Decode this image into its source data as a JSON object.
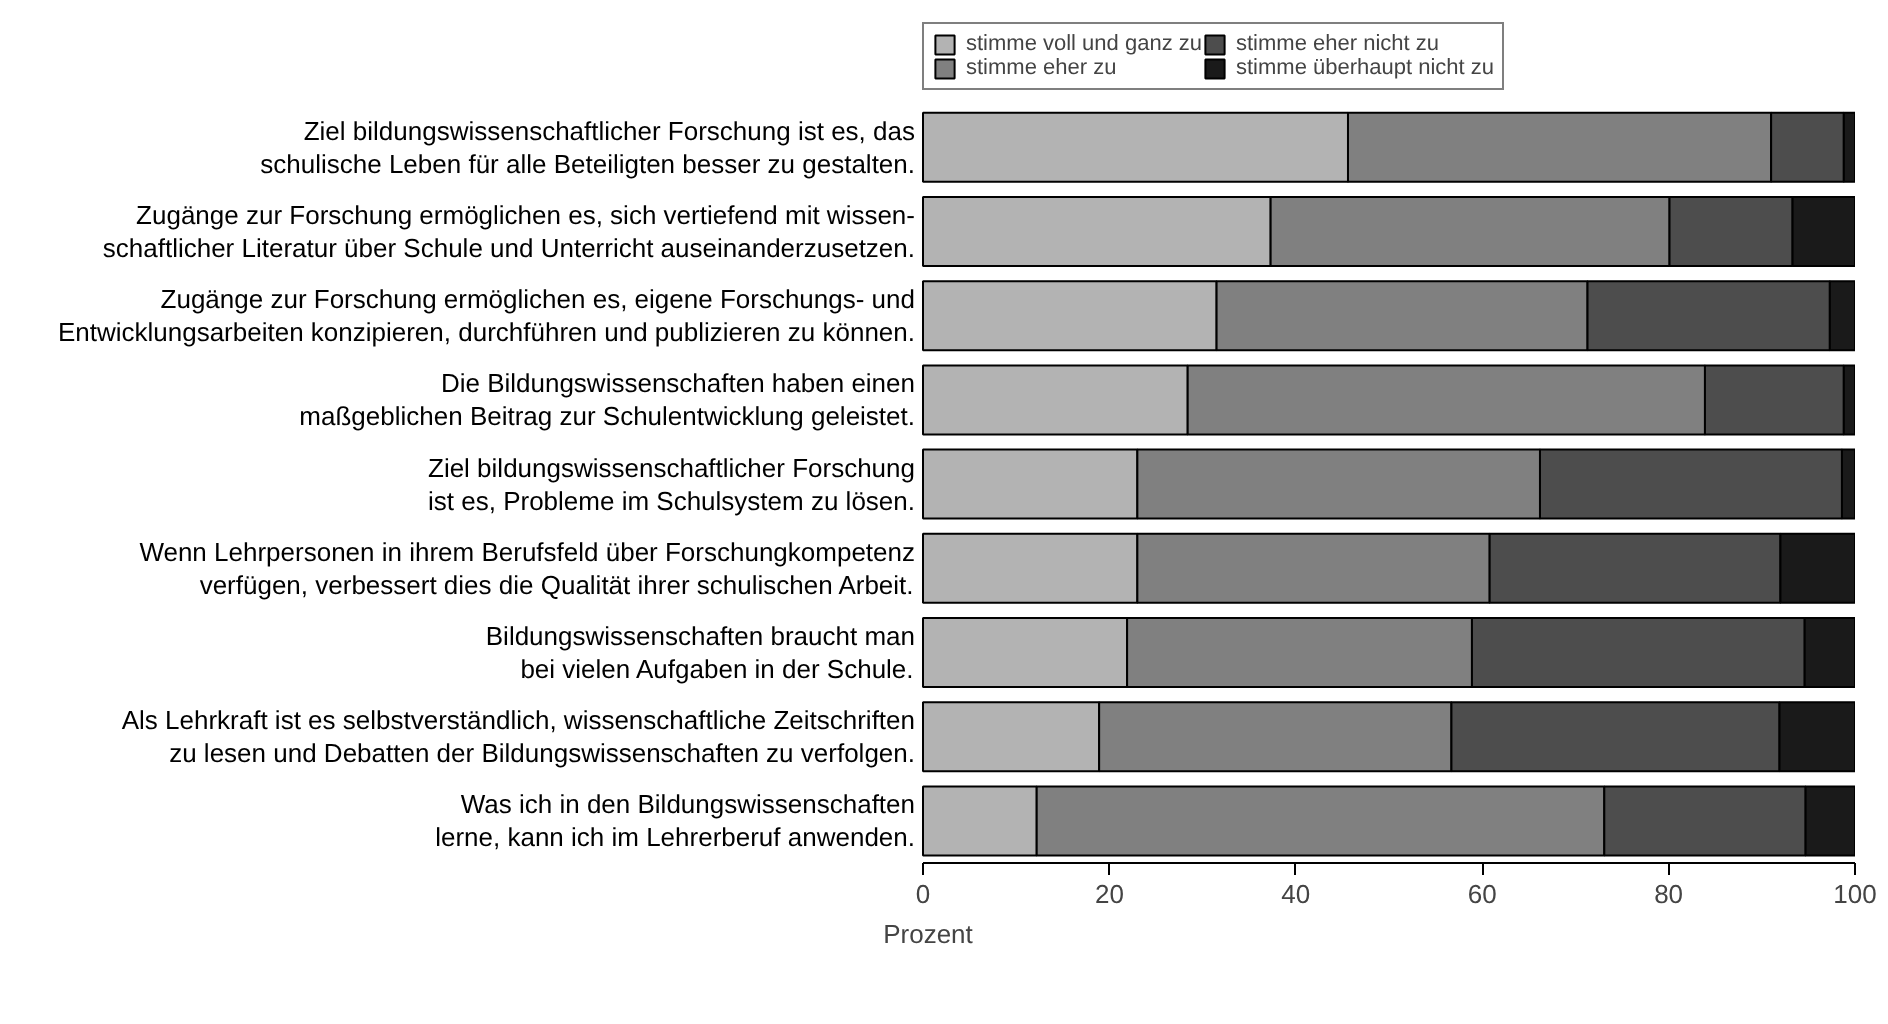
{
  "chart_data": {
    "type": "bar",
    "orientation": "horizontal",
    "stacked": true,
    "xlabel": "Prozent",
    "xlim": [
      0,
      100
    ],
    "xticks": [
      0,
      20,
      40,
      60,
      80,
      100
    ],
    "grid": false,
    "legend": "top",
    "categories": [
      "Ziel bildungswissenschaftlicher Forschung ist es, das\nschulische Leben für alle Beteiligten besser zu gestalten.",
      "Zugänge zur Forschung ermöglichen es, sich vertiefend mit wissen-\nschaftlicher Literatur über Schule und Unterricht auseinanderzusetzen.",
      "Zugänge zur Forschung ermöglichen es, eigene Forschungs- und\nEntwicklungsarbeiten konzipieren, durchführen und publizieren zu können.",
      "Die Bildungswissenschaften haben einen\nmaßgeblichen Beitrag zur Schulentwicklung geleistet.",
      "Ziel bildungswissenschaftlicher Forschung\nist es, Probleme im Schulsystem zu lösen.",
      "Wenn Lehrpersonen in ihrem Berufsfeld über Forschungkompetenz\nverfügen, verbessert dies die Qualität ihrer schulischen Arbeit.",
      "Bildungswissenschaften braucht man\nbei vielen Aufgaben in der Schule.",
      "Als Lehrkraft ist es selbstverständlich, wissenschaftliche Zeitschriften\nzu lesen und Debatten der Bildungswissenschaften zu verfolgen.",
      "Was ich in den Bildungswissenschaften\nlerne, kann ich im Lehrerberuf anwenden."
    ],
    "series": [
      {
        "name": "stimme voll und ganz zu",
        "color": "#b3b3b3",
        "values": [
          45.6,
          37.3,
          31.5,
          28.4,
          23.0,
          23.0,
          21.9,
          18.9,
          12.2
        ]
      },
      {
        "name": "stimme eher zu",
        "color": "#808080",
        "values": [
          45.4,
          42.8,
          39.8,
          55.5,
          43.2,
          37.8,
          37.0,
          37.8,
          60.9
        ]
      },
      {
        "name": "stimme eher nicht zu",
        "color": "#4d4d4d",
        "values": [
          7.8,
          13.2,
          26.0,
          14.9,
          32.4,
          31.2,
          35.7,
          35.2,
          21.6
        ]
      },
      {
        "name": "stimme überhaupt nicht zu",
        "color": "#1a1a1a",
        "values": [
          1.2,
          6.7,
          2.7,
          1.2,
          1.4,
          8.0,
          5.4,
          8.1,
          5.3
        ]
      }
    ]
  }
}
